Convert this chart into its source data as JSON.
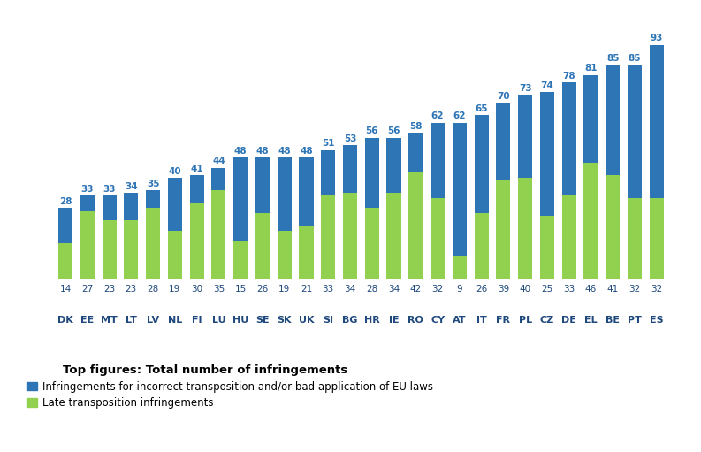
{
  "categories": [
    "DK",
    "EE",
    "MT",
    "LT",
    "LV",
    "NL",
    "FI",
    "LU",
    "HU",
    "SE",
    "SK",
    "UK",
    "SI",
    "BG",
    "HR",
    "IE",
    "RO",
    "CY",
    "AT",
    "IT",
    "FR",
    "PL",
    "CZ",
    "DE",
    "EL",
    "BE",
    "PT",
    "ES"
  ],
  "late_transposition": [
    14,
    27,
    23,
    23,
    28,
    19,
    30,
    35,
    15,
    26,
    19,
    21,
    33,
    34,
    28,
    34,
    42,
    32,
    9,
    26,
    39,
    40,
    25,
    33,
    46,
    41,
    32,
    32
  ],
  "incorrect_transposition": [
    14,
    6,
    10,
    11,
    7,
    21,
    11,
    9,
    33,
    22,
    29,
    27,
    18,
    19,
    28,
    22,
    16,
    30,
    53,
    39,
    31,
    33,
    49,
    45,
    35,
    44,
    53,
    61
  ],
  "totals": [
    28,
    33,
    33,
    34,
    35,
    40,
    41,
    44,
    48,
    48,
    48,
    48,
    51,
    53,
    56,
    56,
    58,
    62,
    62,
    65,
    70,
    73,
    74,
    78,
    81,
    85,
    85,
    93
  ],
  "color_blue": "#2E75B6",
  "color_green": "#92D050",
  "title": "Top figures: Total number of infringements",
  "legend_blue": "Infringements for incorrect transposition and/or bad application of EU laws",
  "legend_green": "Late transposition infringements",
  "ylim": [
    0,
    100
  ],
  "figsize": [
    7.93,
    5.11
  ],
  "dpi": 100
}
